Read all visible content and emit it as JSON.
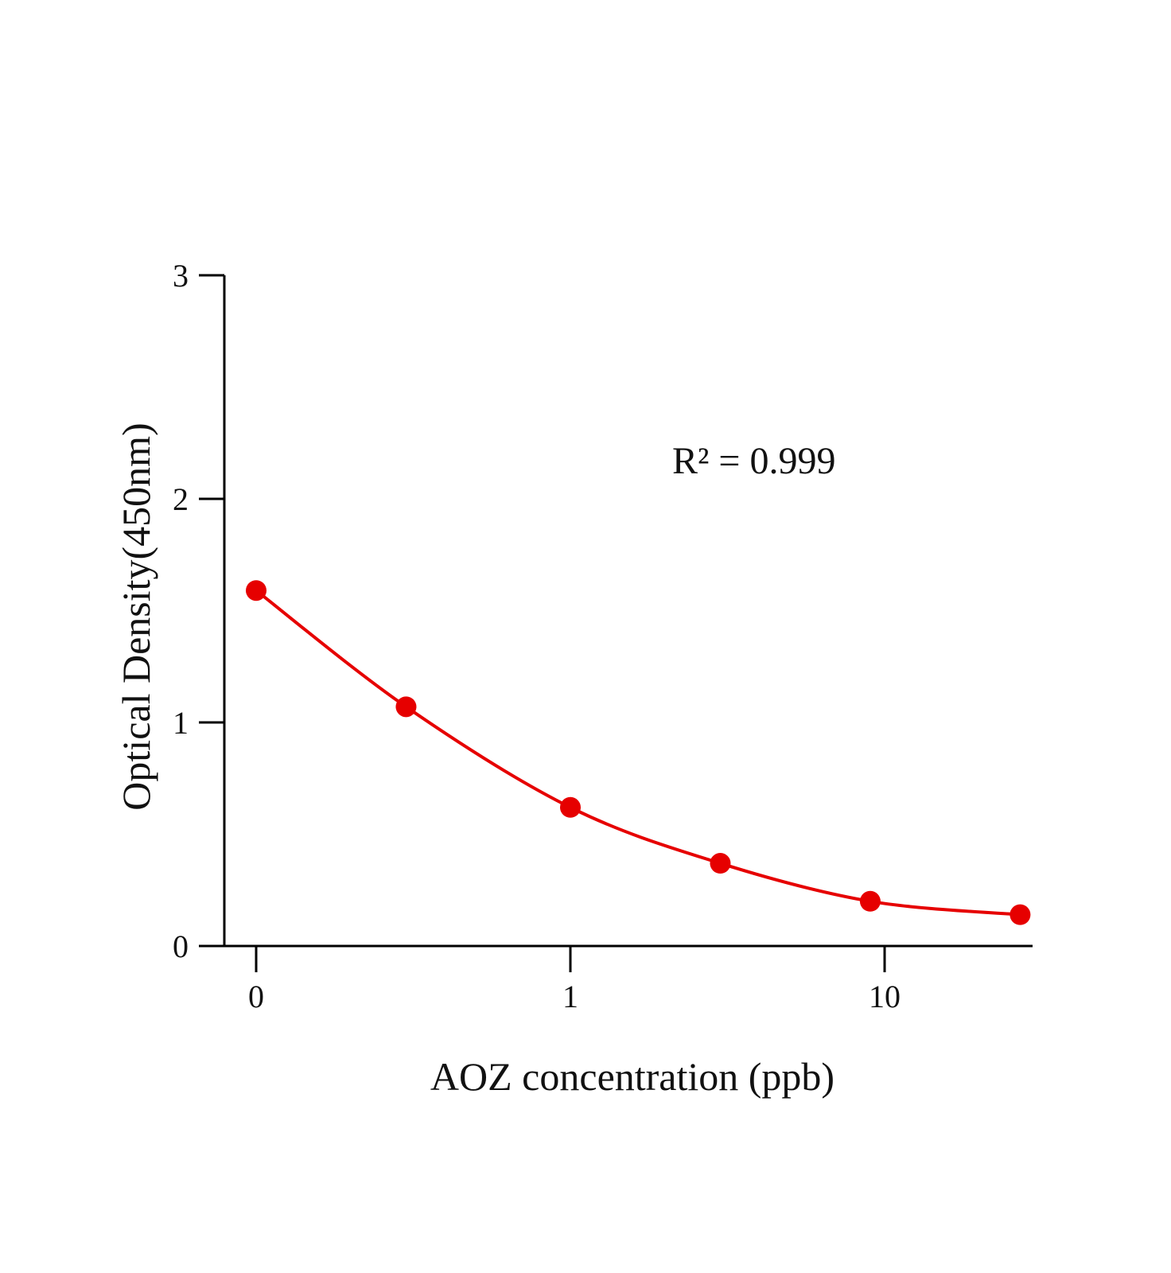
{
  "chart_data": {
    "type": "scatter",
    "title": "",
    "xlabel": "AOZ concentration (ppb)",
    "ylabel": "Optical Density(450nm)",
    "x_scale": "log",
    "x_ticks": [
      {
        "value": 0.1,
        "label": "0"
      },
      {
        "value": 1,
        "label": "1"
      },
      {
        "value": 10,
        "label": "10"
      }
    ],
    "y_ticks": [
      {
        "value": 0,
        "label": "0"
      },
      {
        "value": 1,
        "label": "1"
      },
      {
        "value": 2,
        "label": "2"
      },
      {
        "value": 3,
        "label": "3"
      }
    ],
    "xlim": [
      0.075,
      40
    ],
    "ylim": [
      0,
      3
    ],
    "grid": false,
    "series": [
      {
        "x": [
          0.1,
          0.3,
          1,
          3,
          9,
          27
        ],
        "y": [
          1.59,
          1.07,
          0.62,
          0.37,
          0.2,
          0.14
        ],
        "color": "#e60000",
        "fit_curve": true
      }
    ],
    "annotation": "R² = 0.999"
  }
}
